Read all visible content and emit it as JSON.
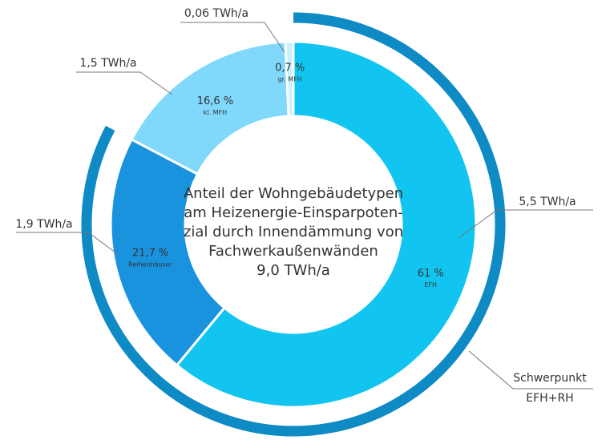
{
  "chart_data": {
    "type": "pie",
    "donut": true,
    "title_lines": [
      "Anteil der Wohngebäudetypen",
      "am Heizenergie-Einsparpoten-",
      "zial durch Innendämmung von",
      "Fachwerkaußenwänden",
      "9,0 TWh/a"
    ],
    "categories": [
      "EFH",
      "Reihenhäuser",
      "kl. MFH",
      "gr. MFH"
    ],
    "values": [
      61,
      21.7,
      16.6,
      0.7
    ],
    "value_labels": [
      "61 %",
      "21,7 %",
      "16,6 %",
      "0,7 %"
    ],
    "energy_labels": [
      "5,5 TWh/a",
      "1,9 TWh/a",
      "1,5 TWh/a",
      "0,06 TWh/a"
    ],
    "colors": [
      "#12c5f0",
      "#1a93df",
      "#80d8fb",
      "#c9f0fd"
    ],
    "highlight": {
      "label_lines": [
        "Schwerpunkt",
        "EFH+RH"
      ],
      "categories": [
        0,
        1
      ],
      "color": "#0e8ac4"
    }
  }
}
